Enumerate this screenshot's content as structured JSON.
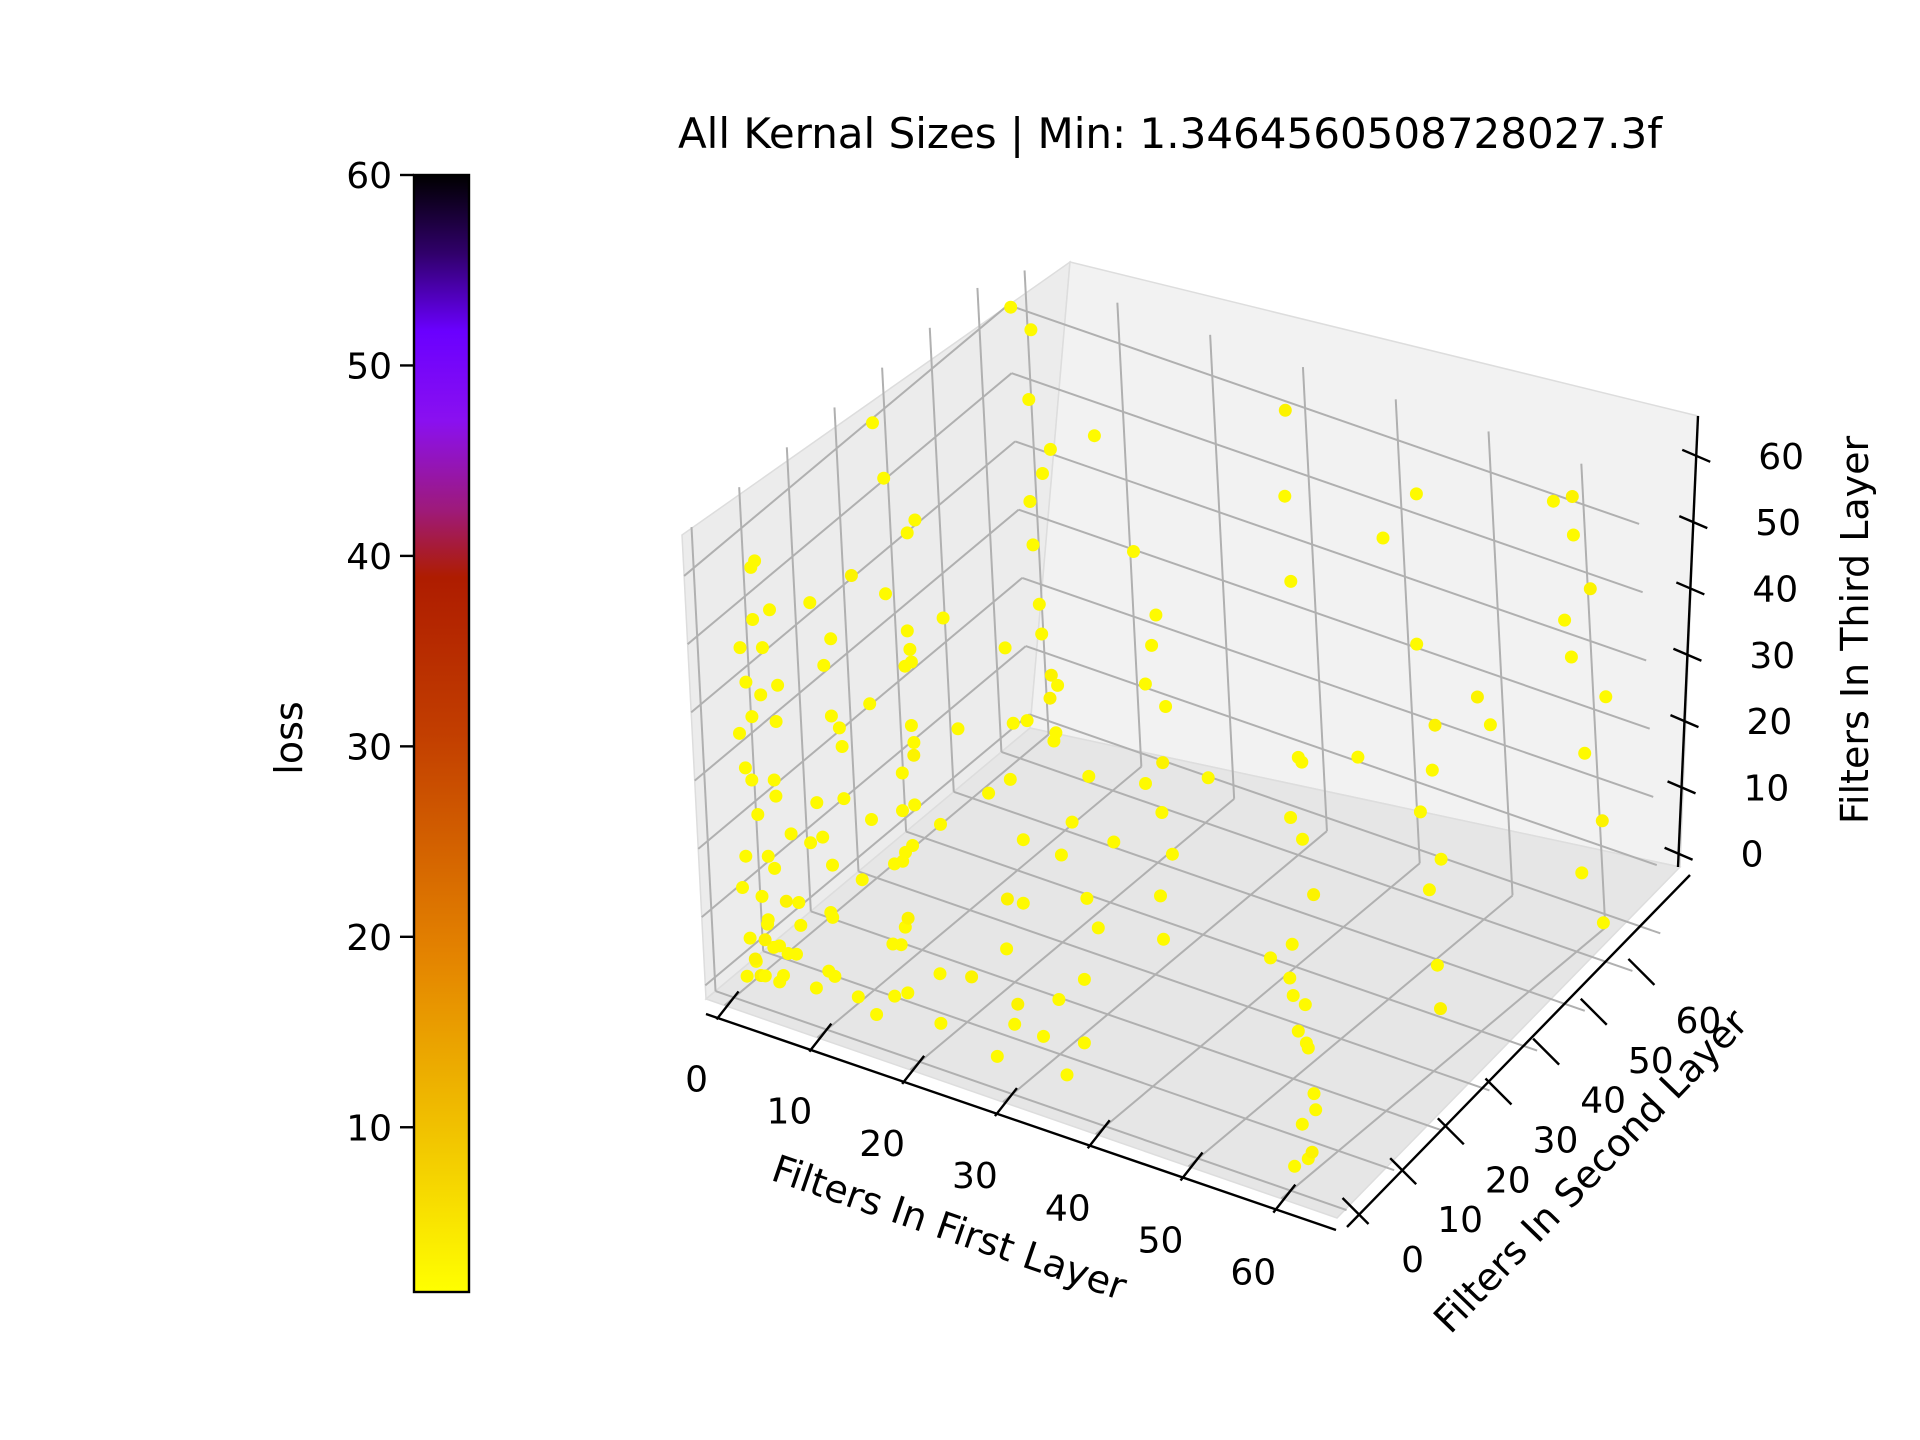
{
  "chart_data": {
    "type": "scatter",
    "title": "All Kernal Sizes | Min: 1.3464560508728027.3f",
    "xlabel": "Filters In First Layer",
    "ylabel": "Filters In Second Layer",
    "zlabel": "Filters In Third Layer",
    "colorbar_label": "loss",
    "xlim": [
      -2,
      66
    ],
    "ylim": [
      -2,
      66
    ],
    "zlim": [
      -2,
      66
    ],
    "xticks": [
      0,
      10,
      20,
      30,
      40,
      50,
      60
    ],
    "yticks": [
      0,
      10,
      20,
      30,
      40,
      50,
      60
    ],
    "zticks": [
      0,
      10,
      20,
      30,
      40,
      50,
      60
    ],
    "colorbar_range": [
      1.35,
      60
    ],
    "colorbar_ticks": [
      10,
      20,
      30,
      40,
      50,
      60
    ],
    "colormap": "gnuplot_r",
    "grid": true,
    "points": [
      [
        1,
        1,
        1,
        2
      ],
      [
        2,
        2,
        1,
        3
      ],
      [
        3,
        1,
        2,
        2
      ],
      [
        1,
        3,
        2,
        2
      ],
      [
        2,
        1,
        4,
        3
      ],
      [
        4,
        2,
        1,
        2
      ],
      [
        1,
        2,
        6,
        2
      ],
      [
        3,
        3,
        5,
        2
      ],
      [
        2,
        4,
        8,
        2
      ],
      [
        5,
        1,
        3,
        2
      ],
      [
        1,
        5,
        4,
        3
      ],
      [
        4,
        4,
        4,
        2
      ],
      [
        3,
        2,
        9,
        2
      ],
      [
        2,
        3,
        12,
        2
      ],
      [
        1,
        1,
        14,
        2
      ],
      [
        6,
        2,
        6,
        2
      ],
      [
        2,
        6,
        3,
        2
      ],
      [
        5,
        5,
        8,
        2
      ],
      [
        3,
        4,
        16,
        2
      ],
      [
        1,
        2,
        18,
        2
      ],
      [
        4,
        1,
        20,
        2
      ],
      [
        2,
        3,
        24,
        2
      ],
      [
        6,
        3,
        13,
        2
      ],
      [
        3,
        6,
        10,
        3
      ],
      [
        1,
        4,
        28,
        2
      ],
      [
        2,
        1,
        32,
        2
      ],
      [
        4,
        3,
        30,
        2
      ],
      [
        1,
        2,
        36,
        2
      ],
      [
        3,
        1,
        40,
        2
      ],
      [
        5,
        4,
        22,
        2
      ],
      [
        2,
        2,
        44,
        2
      ],
      [
        1,
        3,
        48,
        2
      ],
      [
        4,
        2,
        50,
        2
      ],
      [
        2,
        4,
        52,
        2
      ],
      [
        6,
        1,
        46,
        2
      ],
      [
        3,
        3,
        42,
        2
      ],
      [
        5,
        2,
        56,
        2
      ],
      [
        2,
        5,
        60,
        2
      ],
      [
        1,
        6,
        58,
        2
      ],
      [
        4,
        4,
        38,
        2
      ],
      [
        6,
        6,
        20,
        2
      ],
      [
        3,
        5,
        26,
        2
      ],
      [
        8,
        2,
        2,
        2
      ],
      [
        9,
        4,
        3,
        2
      ],
      [
        10,
        1,
        6,
        2
      ],
      [
        12,
        3,
        2,
        2
      ],
      [
        8,
        6,
        10,
        2
      ],
      [
        10,
        2,
        14,
        2
      ],
      [
        12,
        5,
        18,
        2
      ],
      [
        9,
        3,
        24,
        2
      ],
      [
        11,
        4,
        30,
        2
      ],
      [
        10,
        6,
        36,
        2
      ],
      [
        12,
        2,
        42,
        2
      ],
      [
        9,
        5,
        48,
        2
      ],
      [
        11,
        3,
        54,
        2
      ],
      [
        10,
        1,
        60,
        2
      ],
      [
        12,
        6,
        62,
        3
      ],
      [
        8,
        4,
        28,
        2
      ],
      [
        11,
        1,
        22,
        2
      ],
      [
        9,
        6,
        40,
        2
      ],
      [
        15,
        1,
        2,
        2
      ],
      [
        16,
        3,
        4,
        2
      ],
      [
        18,
        2,
        6,
        2
      ],
      [
        15,
        5,
        10,
        2
      ],
      [
        17,
        4,
        14,
        2
      ],
      [
        19,
        1,
        18,
        3
      ],
      [
        16,
        6,
        22,
        2
      ],
      [
        18,
        3,
        26,
        2
      ],
      [
        15,
        2,
        30,
        2
      ],
      [
        17,
        5,
        36,
        2
      ],
      [
        19,
        4,
        42,
        2
      ],
      [
        16,
        1,
        48,
        2
      ],
      [
        18,
        6,
        54,
        2
      ],
      [
        20,
        2,
        60,
        2
      ],
      [
        17,
        3,
        12,
        2
      ],
      [
        20,
        5,
        8,
        2
      ],
      [
        22,
        1,
        4,
        2
      ],
      [
        24,
        4,
        10,
        3
      ],
      [
        22,
        3,
        32,
        2
      ],
      [
        25,
        2,
        48,
        2
      ],
      [
        28,
        1,
        2,
        2
      ],
      [
        29,
        3,
        6,
        2
      ],
      [
        30,
        2,
        10,
        3
      ],
      [
        31,
        5,
        4,
        2
      ],
      [
        28,
        4,
        16,
        2
      ],
      [
        29,
        6,
        22,
        2
      ],
      [
        30,
        1,
        26,
        3
      ],
      [
        31,
        3,
        34,
        2
      ],
      [
        28,
        2,
        40,
        2
      ],
      [
        30,
        4,
        50,
        2
      ],
      [
        29,
        5,
        60,
        2
      ],
      [
        31,
        1,
        44,
        2
      ],
      [
        35,
        2,
        2,
        2
      ],
      [
        36,
        4,
        6,
        2
      ],
      [
        34,
        3,
        12,
        2
      ],
      [
        38,
        1,
        18,
        2
      ],
      [
        36,
        6,
        26,
        2
      ],
      [
        34,
        5,
        32,
        2
      ],
      [
        37,
        2,
        40,
        2
      ],
      [
        36,
        1,
        52,
        2
      ],
      [
        35,
        3,
        60,
        3
      ],
      [
        38,
        4,
        46,
        2
      ],
      [
        60,
        1,
        1,
        2
      ],
      [
        61,
        2,
        2,
        2
      ],
      [
        62,
        1,
        4,
        3
      ],
      [
        60,
        3,
        6,
        2
      ],
      [
        61,
        4,
        8,
        2
      ],
      [
        62,
        2,
        12,
        2
      ],
      [
        60,
        5,
        16,
        2
      ],
      [
        62,
        1,
        20,
        2
      ],
      [
        61,
        3,
        24,
        2
      ],
      [
        60,
        2,
        28,
        2
      ],
      [
        61,
        1,
        34,
        2
      ],
      [
        62,
        4,
        40,
        3
      ],
      [
        60,
        6,
        46,
        2
      ],
      [
        61,
        2,
        52,
        2
      ],
      [
        62,
        3,
        60,
        2
      ],
      [
        60,
        6,
        58,
        2
      ],
      [
        58,
        2,
        30,
        2
      ],
      [
        59,
        5,
        18,
        2
      ],
      [
        2,
        30,
        1,
        2
      ],
      [
        3,
        32,
        3,
        2
      ],
      [
        1,
        34,
        6,
        2
      ],
      [
        4,
        31,
        10,
        2
      ],
      [
        2,
        35,
        14,
        3
      ],
      [
        3,
        33,
        20,
        2
      ],
      [
        1,
        36,
        26,
        2
      ],
      [
        5,
        30,
        32,
        2
      ],
      [
        2,
        31,
        40,
        2
      ],
      [
        4,
        34,
        50,
        2
      ],
      [
        3,
        30,
        58,
        2
      ],
      [
        1,
        32,
        64,
        2
      ],
      [
        6,
        35,
        36,
        2
      ],
      [
        2,
        36,
        46,
        2
      ],
      [
        3,
        62,
        2,
        2
      ],
      [
        1,
        60,
        4,
        2
      ],
      [
        2,
        63,
        6,
        3
      ],
      [
        4,
        61,
        10,
        2
      ],
      [
        2,
        62,
        16,
        2
      ],
      [
        3,
        60,
        22,
        2
      ],
      [
        1,
        63,
        28,
        2
      ],
      [
        2,
        61,
        36,
        2
      ],
      [
        4,
        62,
        44,
        2
      ],
      [
        3,
        60,
        52,
        2
      ],
      [
        2,
        63,
        60,
        2
      ],
      [
        1,
        61,
        64,
        2
      ],
      [
        3,
        62,
        40,
        2
      ],
      [
        30,
        30,
        60,
        2
      ],
      [
        31,
        32,
        50,
        2
      ],
      [
        30,
        31,
        40,
        2
      ],
      [
        32,
        30,
        30,
        3
      ],
      [
        30,
        33,
        20,
        2
      ],
      [
        31,
        30,
        10,
        2
      ],
      [
        30,
        32,
        2,
        2
      ],
      [
        32,
        31,
        16,
        2
      ],
      [
        30,
        30,
        26,
        2
      ],
      [
        31,
        33,
        36,
        2
      ],
      [
        60,
        32,
        6,
        3
      ],
      [
        61,
        30,
        14,
        2
      ],
      [
        60,
        31,
        24,
        2
      ],
      [
        60,
        30,
        36,
        2
      ],
      [
        61,
        32,
        48,
        3
      ],
      [
        60,
        31,
        60,
        2
      ],
      [
        62,
        30,
        30,
        2
      ],
      [
        61,
        31,
        42,
        2
      ],
      [
        62,
        62,
        2,
        2
      ],
      [
        61,
        60,
        10,
        2
      ],
      [
        63,
        61,
        18,
        3
      ],
      [
        62,
        60,
        28,
        2
      ],
      [
        60,
        62,
        40,
        2
      ],
      [
        63,
        61,
        52,
        3
      ],
      [
        62,
        60,
        60,
        2
      ],
      [
        61,
        62,
        64,
        3
      ],
      [
        63,
        63,
        35,
        2
      ],
      [
        60,
        61,
        46,
        2
      ],
      [
        30,
        62,
        62,
        3
      ],
      [
        30,
        61,
        50,
        2
      ],
      [
        60,
        60,
        64,
        2
      ],
      [
        45,
        30,
        2,
        2
      ],
      [
        20,
        61,
        4,
        2
      ],
      [
        40,
        62,
        48,
        2
      ],
      [
        50,
        61,
        30,
        3
      ],
      [
        24,
        30,
        2,
        2
      ],
      [
        10,
        60,
        50,
        2
      ],
      [
        14,
        62,
        20,
        2
      ],
      [
        46,
        32,
        62,
        2
      ],
      [
        36,
        62,
        14,
        2
      ],
      [
        45,
        60,
        58,
        2
      ],
      [
        60,
        45,
        40,
        2
      ],
      [
        18,
        45,
        3,
        2
      ]
    ]
  }
}
